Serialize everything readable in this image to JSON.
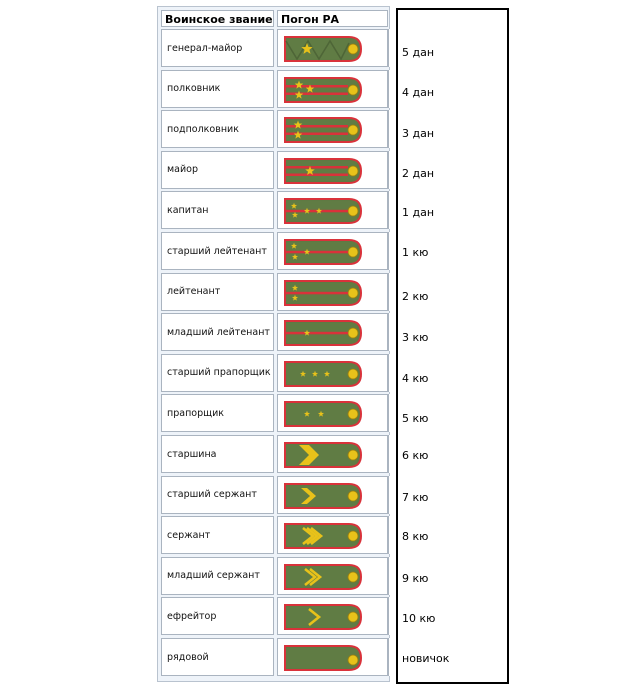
{
  "table": {
    "header_rank": "Воинское звание",
    "header_strap": "Погон РА",
    "rows": [
      {
        "rank": "генерал-майор",
        "strap": "general-major-shoulder-strap"
      },
      {
        "rank": "полковник",
        "strap": "colonel-shoulder-strap"
      },
      {
        "rank": "подполковник",
        "strap": "lieutenant-colonel-shoulder-strap"
      },
      {
        "rank": "майор",
        "strap": "major-shoulder-strap"
      },
      {
        "rank": "капитан",
        "strap": "captain-shoulder-strap"
      },
      {
        "rank": "старший лейтенант",
        "strap": "senior-lieutenant-shoulder-strap"
      },
      {
        "rank": "лейтенант",
        "strap": "lieutenant-shoulder-strap"
      },
      {
        "rank": "младший лейтенант",
        "strap": "junior-lieutenant-shoulder-strap"
      },
      {
        "rank": "старший прапорщик",
        "strap": "senior-warrant-officer-shoulder-strap"
      },
      {
        "rank": "прапорщик",
        "strap": "warrant-officer-shoulder-strap"
      },
      {
        "rank": "старшина",
        "strap": "sergeant-major-shoulder-strap"
      },
      {
        "rank": "старший сержант",
        "strap": "senior-sergeant-shoulder-strap"
      },
      {
        "rank": "сержант",
        "strap": "sergeant-shoulder-strap"
      },
      {
        "rank": "младший сержант",
        "strap": "junior-sergeant-shoulder-strap"
      },
      {
        "rank": "ефрейтор",
        "strap": "corporal-shoulder-strap"
      },
      {
        "rank": "рядовой",
        "strap": "private-shoulder-strap"
      }
    ]
  },
  "levels": [
    "5 дан",
    "4 дан",
    "3 дан",
    "2 дан",
    "1 дан",
    "1 кю",
    "2 кю",
    "3 кю",
    "4 кю",
    "5 кю",
    "6 кю",
    "7 кю",
    "8 кю",
    "9 кю",
    "10 кю",
    "новичок"
  ],
  "colors": {
    "strap_green": "#5f7a43",
    "stripe_red": "#d9323a",
    "insignia_gold": "#e8c21a",
    "table_bg": "#eef3f9"
  }
}
